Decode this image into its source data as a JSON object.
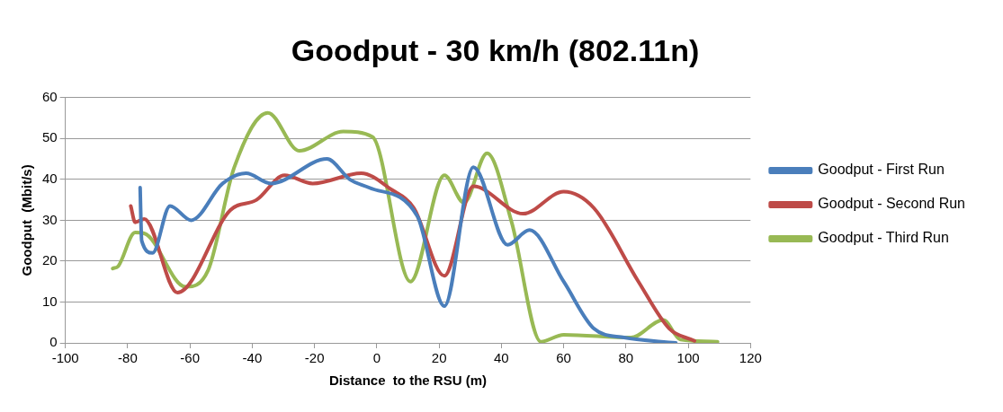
{
  "chart_data": {
    "type": "line",
    "title": "Goodput - 30 km/h (802.11n)",
    "xlabel": "Distance  to the RSU (m)",
    "ylabel": "Goodput  (Mbit/s)",
    "xlim": [
      -100,
      120
    ],
    "xticks": [
      -100,
      -80,
      -60,
      -40,
      -20,
      0,
      20,
      40,
      60,
      80,
      100,
      120
    ],
    "ylim": [
      0,
      60
    ],
    "yticks": [
      0,
      10,
      20,
      30,
      40,
      50,
      60
    ],
    "grid": "y",
    "legend": "right",
    "marker": "none",
    "line_style": "solid",
    "series": [
      {
        "name": "Goodput - First Run",
        "color": "#4a7ebb",
        "x": [
          -76,
          -75.5,
          -72,
          -66.4,
          -59.6,
          -49.5,
          -42,
          -34,
          -16,
          -8.7,
          -2.5,
          13,
          21.7,
          31,
          42,
          49,
          60,
          69.7,
          79.4,
          96
        ],
        "values": [
          38,
          25,
          22,
          33.5,
          30,
          39,
          41.5,
          39,
          45,
          40,
          38,
          31,
          9,
          43,
          24,
          27.6,
          15,
          3.5,
          1.3,
          0
        ]
      },
      {
        "name": "Goodput - Second Run",
        "color": "#be4b48",
        "x": [
          -79,
          -77.6,
          -74.7,
          -64,
          -47,
          -38.6,
          -29.6,
          -20.6,
          -5,
          4.7,
          11.9,
          21.7,
          31,
          47,
          60,
          69.7,
          84,
          93.9,
          102
        ],
        "values": [
          33.5,
          29.5,
          30.3,
          12.3,
          32.5,
          35,
          41,
          39,
          41.5,
          37.5,
          33,
          16.4,
          38.3,
          31.6,
          37,
          33,
          15,
          3.5,
          0.5
        ]
      },
      {
        "name": "Goodput - Third Run",
        "color": "#98b954",
        "x": [
          -84.8,
          -83,
          -77.6,
          -74.7,
          -61.4,
          -54.2,
          -45.8,
          -35,
          -24.9,
          -10.8,
          -1.4,
          10.8,
          21.7,
          28,
          35.4,
          43.3,
          52.7,
          60,
          81.6,
          92,
          97.5,
          109.4
        ],
        "values": [
          18.2,
          18.8,
          27,
          26.8,
          13.7,
          17.7,
          42.9,
          56.3,
          47,
          51.7,
          50.4,
          15,
          41,
          34.3,
          46.4,
          29.5,
          0.3,
          2,
          1.3,
          5.6,
          0.8,
          0.3
        ]
      }
    ]
  }
}
